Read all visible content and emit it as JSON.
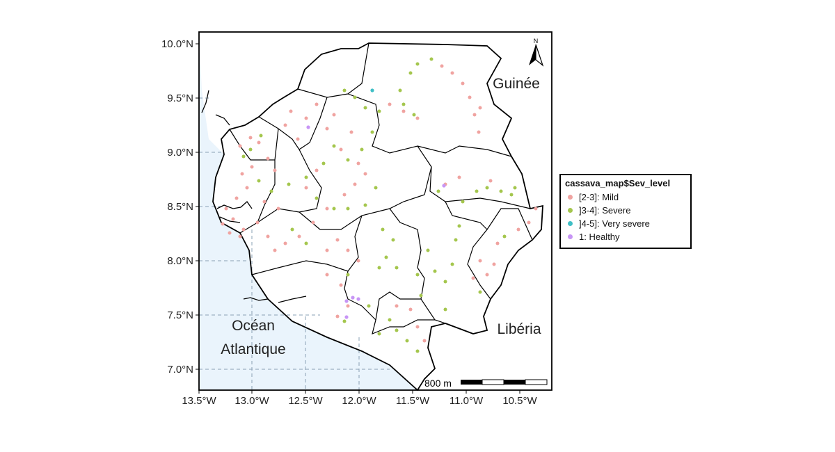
{
  "map": {
    "lat_ticks": [
      "10.0°N",
      "9.5°N",
      "9.0°N",
      "8.5°N",
      "8.0°N",
      "7.5°N",
      "7.0°N"
    ],
    "lon_ticks": [
      "13.5°W",
      "13.0°W",
      "12.5°W",
      "12.0°W",
      "11.5°W",
      "11.0°W",
      "10.5°W"
    ],
    "labels": {
      "guinee": "Guinée",
      "liberia": "Libéria",
      "ocean_line1": "Océan",
      "ocean_line2": "Atlantique"
    },
    "north_arrow": "N",
    "scale_bar_label": "800 m",
    "ocean_color": "#eaf4fc"
  },
  "legend": {
    "title": "cassava_map$Sev_level",
    "items": [
      {
        "label": "[2-3]: Mild",
        "color": "#f0a3a0"
      },
      {
        "label": "]3-4]: Severe",
        "color": "#a4c64d"
      },
      {
        "label": "]4-5]: Very severe",
        "color": "#3fbfc6"
      },
      {
        "label": "1: Healthy",
        "color": "#c795f5"
      }
    ]
  }
}
